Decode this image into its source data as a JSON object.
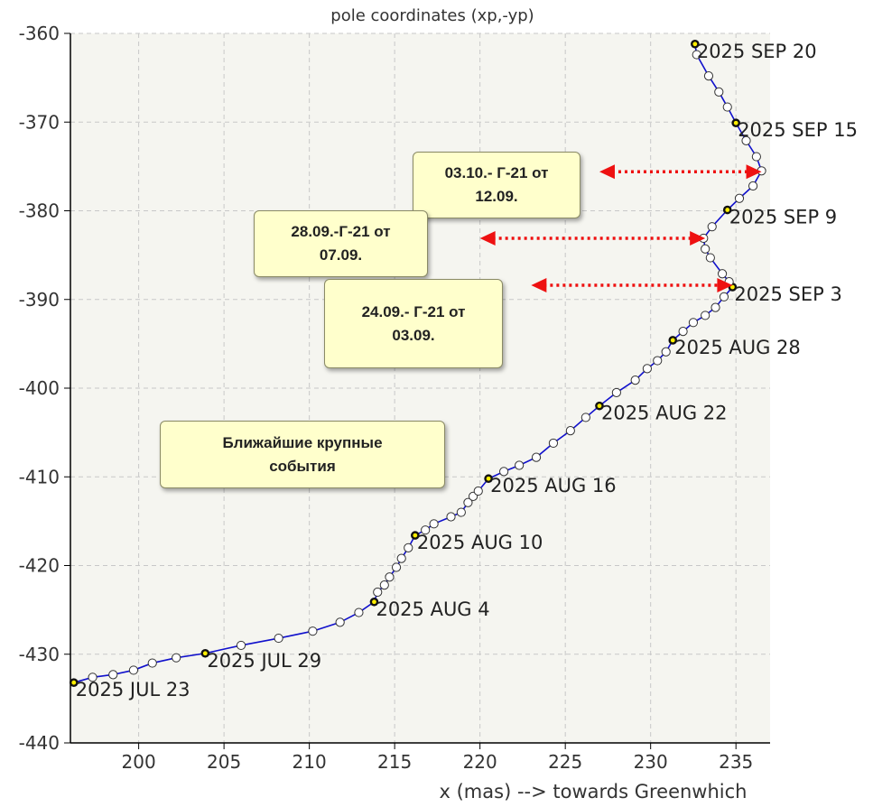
{
  "chart_data": {
    "type": "line",
    "title": "pole coordinates (xp,-yp)",
    "xlabel": "x (mas) --> towards Greenwhich",
    "ylabel": "",
    "xlim": [
      196,
      237
    ],
    "ylim": [
      -440,
      -360
    ],
    "xticks": [
      200,
      205,
      210,
      215,
      220,
      225,
      230,
      235
    ],
    "yticks": [
      -360,
      -370,
      -380,
      -390,
      -400,
      -410,
      -420,
      -430,
      -440
    ],
    "grid": true,
    "series": [
      {
        "name": "",
        "color": "#1010cc",
        "points": [
          [
            196.2,
            -433.2
          ],
          [
            197.3,
            -432.6
          ],
          [
            198.5,
            -432.3
          ],
          [
            199.7,
            -431.8
          ],
          [
            200.8,
            -431.0
          ],
          [
            202.2,
            -430.4
          ],
          [
            203.9,
            -429.9
          ],
          [
            206.0,
            -429.0
          ],
          [
            208.2,
            -428.2
          ],
          [
            210.2,
            -427.4
          ],
          [
            211.8,
            -426.4
          ],
          [
            212.9,
            -425.3
          ],
          [
            213.8,
            -424.1
          ],
          [
            214.0,
            -423.0
          ],
          [
            214.4,
            -422.2
          ],
          [
            214.7,
            -421.3
          ],
          [
            215.1,
            -420.2
          ],
          [
            215.4,
            -419.2
          ],
          [
            215.8,
            -418.0
          ],
          [
            216.2,
            -416.6
          ],
          [
            216.8,
            -416.0
          ],
          [
            217.3,
            -415.3
          ],
          [
            218.3,
            -414.5
          ],
          [
            218.9,
            -414.0
          ],
          [
            219.3,
            -412.9
          ],
          [
            219.6,
            -412.2
          ],
          [
            219.9,
            -411.6
          ],
          [
            220.5,
            -410.2
          ],
          [
            221.4,
            -409.4
          ],
          [
            222.3,
            -408.7
          ],
          [
            223.3,
            -407.8
          ],
          [
            224.3,
            -406.2
          ],
          [
            225.3,
            -404.8
          ],
          [
            226.2,
            -403.3
          ],
          [
            227.0,
            -402.0
          ],
          [
            228.0,
            -400.5
          ],
          [
            229.1,
            -399.1
          ],
          [
            229.8,
            -397.8
          ],
          [
            230.4,
            -396.9
          ],
          [
            230.9,
            -395.9
          ],
          [
            231.3,
            -394.6
          ],
          [
            231.9,
            -393.6
          ],
          [
            232.5,
            -392.6
          ],
          [
            233.2,
            -391.8
          ],
          [
            233.8,
            -390.9
          ],
          [
            234.3,
            -389.7
          ],
          [
            234.8,
            -388.6
          ],
          [
            234.6,
            -388.0
          ],
          [
            234.2,
            -387.1
          ],
          [
            233.5,
            -385.3
          ],
          [
            233.2,
            -384.3
          ],
          [
            233.1,
            -383.1
          ],
          [
            233.6,
            -381.8
          ],
          [
            234.5,
            -379.9
          ],
          [
            235.2,
            -378.6
          ],
          [
            236.0,
            -377.2
          ],
          [
            236.5,
            -375.5
          ],
          [
            236.2,
            -373.9
          ],
          [
            235.6,
            -372.1
          ],
          [
            235.0,
            -370.1
          ],
          [
            234.5,
            -368.3
          ],
          [
            234.0,
            -366.6
          ],
          [
            233.4,
            -364.8
          ],
          [
            232.7,
            -362.4
          ],
          [
            232.6,
            -361.2
          ]
        ],
        "highlighted_indices": [
          0,
          6,
          12,
          19,
          27,
          34,
          40,
          46,
          53,
          59,
          64
        ]
      }
    ],
    "annotations": [
      {
        "text": "2025 JUL 23",
        "x": 196.2,
        "y": -433.2
      },
      {
        "text": "2025 JUL 29",
        "x": 203.9,
        "y": -429.9
      },
      {
        "text": "2025 AUG 4",
        "x": 213.8,
        "y": -424.1
      },
      {
        "text": "2025 AUG 10",
        "x": 216.2,
        "y": -416.6
      },
      {
        "text": "2025 AUG 16",
        "x": 220.5,
        "y": -410.2
      },
      {
        "text": "2025 AUG 22",
        "x": 227.0,
        "y": -402.0
      },
      {
        "text": "2025 AUG 28",
        "x": 231.3,
        "y": -394.6
      },
      {
        "text": "2025 SEP 3",
        "x": 234.8,
        "y": -388.6
      },
      {
        "text": "2025 SEP 9",
        "x": 234.5,
        "y": -379.9
      },
      {
        "text": "2025 SEP 15",
        "x": 235.0,
        "y": -370.1
      },
      {
        "text": "2025 SEP 20",
        "x": 232.6,
        "y": -361.2
      }
    ],
    "arrows": [
      {
        "from": [
          227.0,
          -375.6
        ],
        "to": [
          236.5,
          -375.6
        ],
        "color": "#ee1111"
      },
      {
        "from": [
          220.0,
          -383.1
        ],
        "to": [
          233.2,
          -383.1
        ],
        "color": "#ee1111"
      },
      {
        "from": [
          223.0,
          -388.4
        ],
        "to": [
          234.8,
          -388.4
        ],
        "color": "#ee1111"
      }
    ]
  },
  "notes": {
    "sep3": "24.09.- Г-21 от\n03.09.",
    "sep7": "28.09.-Г-21 от\n07.09.",
    "sep12": "03.10.- Г-21 от\n12.09.",
    "events": "Ближайшие крупные\nсобытия"
  }
}
